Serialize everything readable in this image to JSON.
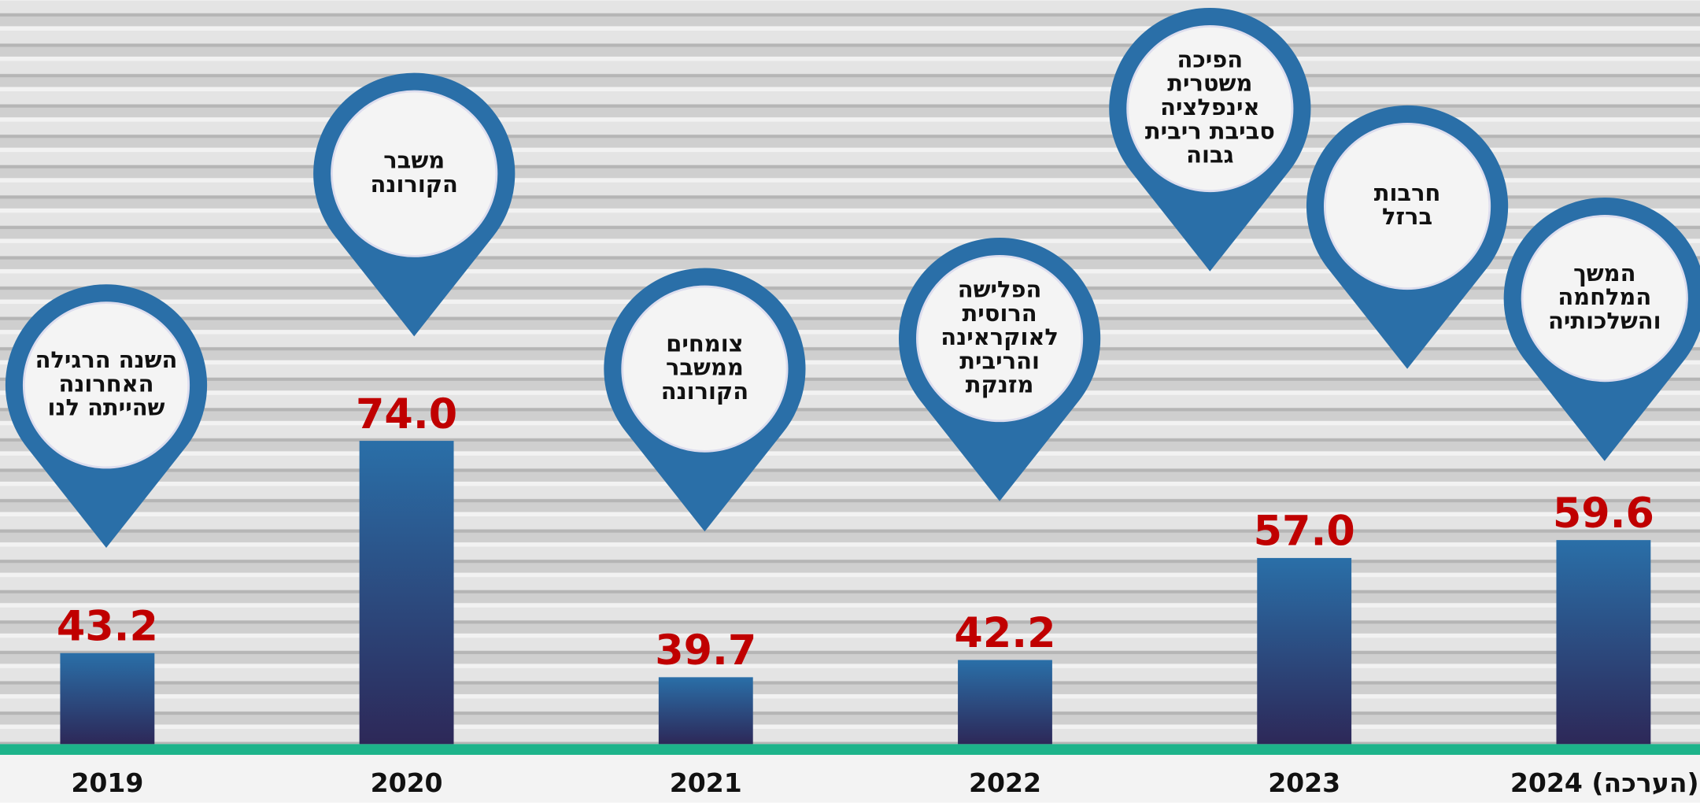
{
  "chart_data": {
    "type": "bar",
    "categories": [
      "2019",
      "2020",
      "2021",
      "2022",
      "2023",
      "2024 (הערכה)"
    ],
    "values": [
      43.2,
      74.0,
      39.7,
      42.2,
      57.0,
      59.6
    ],
    "value_labels": [
      "43.2",
      "74.0",
      "39.7",
      "42.2",
      "57.0",
      "59.6"
    ],
    "color": "#2a6fa8",
    "label_color": "#c00000",
    "ylim": [
      30,
      75
    ],
    "annotations": [
      [
        "השנה הרגילה",
        "האחרונה",
        "שהייתה לנו"
      ],
      [
        "משבר",
        "הקורונה"
      ],
      [
        "צומחים",
        "ממשבר",
        "הקורונה"
      ],
      [
        "הפלישה",
        "הרוסית",
        "לאוקראינה",
        "והריבית",
        "מזנקת"
      ],
      [
        "הפיכה",
        "משטרית",
        "אינפלציה",
        "סביבת ריבית",
        "גבוה"
      ],
      [
        "חרבות",
        "ברזל"
      ],
      [
        "המשך",
        "המלחמה",
        "והשלכותיה"
      ]
    ]
  }
}
